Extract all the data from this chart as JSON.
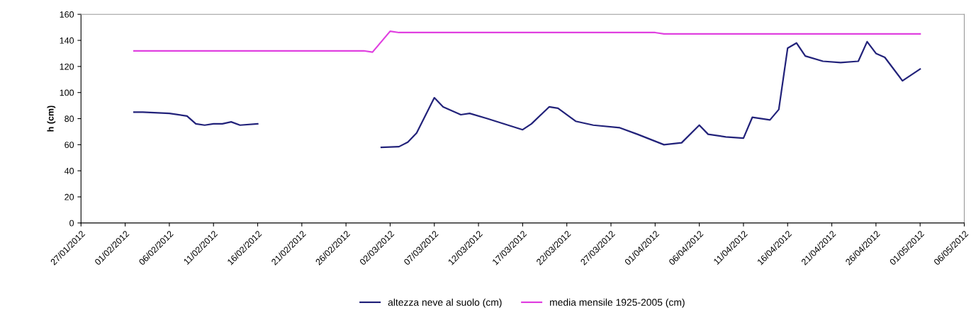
{
  "chart_data": {
    "type": "line",
    "ylabel": "h (cm)",
    "xlim": [
      "2012-01-27",
      "2012-05-06"
    ],
    "xticks": [
      {
        "value": "2012-01-27",
        "label": "27/01/2012"
      },
      {
        "value": "2012-02-01",
        "label": "01/02/2012"
      },
      {
        "value": "2012-02-06",
        "label": "06/02/2012"
      },
      {
        "value": "2012-02-11",
        "label": "11/02/2012"
      },
      {
        "value": "2012-02-16",
        "label": "16/02/2012"
      },
      {
        "value": "2012-02-21",
        "label": "21/02/2012"
      },
      {
        "value": "2012-02-26",
        "label": "26/02/2012"
      },
      {
        "value": "2012-03-02",
        "label": "02/03/2012"
      },
      {
        "value": "2012-03-07",
        "label": "07/03/2012"
      },
      {
        "value": "2012-03-12",
        "label": "12/03/2012"
      },
      {
        "value": "2012-03-17",
        "label": "17/03/2012"
      },
      {
        "value": "2012-03-22",
        "label": "22/03/2012"
      },
      {
        "value": "2012-03-27",
        "label": "27/03/2012"
      },
      {
        "value": "2012-04-01",
        "label": "01/04/2012"
      },
      {
        "value": "2012-04-06",
        "label": "06/04/2012"
      },
      {
        "value": "2012-04-11",
        "label": "11/04/2012"
      },
      {
        "value": "2012-04-16",
        "label": "16/04/2012"
      },
      {
        "value": "2012-04-21",
        "label": "21/04/2012"
      },
      {
        "value": "2012-04-26",
        "label": "26/04/2012"
      },
      {
        "value": "2012-05-01",
        "label": "01/05/2012"
      },
      {
        "value": "2012-05-06",
        "label": "06/05/2012"
      }
    ],
    "ylim": [
      0,
      160
    ],
    "yticks": [
      0,
      20,
      40,
      60,
      80,
      100,
      120,
      140,
      160
    ],
    "grid": false,
    "legend": "bottom",
    "marker": "none",
    "line_style": "solid",
    "series": [
      {
        "name": "altezza neve al suolo (cm)",
        "color": "#22227a",
        "x": [
          "2012-02-02",
          "2012-02-03",
          "2012-02-06",
          "2012-02-08",
          "2012-02-09",
          "2012-02-10",
          "2012-02-11",
          "2012-02-12",
          "2012-02-13",
          "2012-02-14",
          "2012-02-16",
          "2012-02-20",
          "2012-03-01",
          "2012-03-03",
          "2012-03-04",
          "2012-03-05",
          "2012-03-07",
          "2012-03-08",
          "2012-03-10",
          "2012-03-11",
          "2012-03-13",
          "2012-03-17",
          "2012-03-18",
          "2012-03-20",
          "2012-03-21",
          "2012-03-23",
          "2012-03-25",
          "2012-03-28",
          "2012-03-30",
          "2012-04-02",
          "2012-04-04",
          "2012-04-06",
          "2012-04-07",
          "2012-04-09",
          "2012-04-11",
          "2012-04-12",
          "2012-04-14",
          "2012-04-15",
          "2012-04-16",
          "2012-04-17",
          "2012-04-18",
          "2012-04-20",
          "2012-04-22",
          "2012-04-24",
          "2012-04-25",
          "2012-04-26",
          "2012-04-27",
          "2012-04-29",
          "2012-05-01"
        ],
        "values": [
          85,
          85,
          84,
          82,
          76,
          75,
          76,
          76,
          77.5,
          75,
          76,
          null,
          58,
          58.5,
          62,
          69,
          96,
          89,
          83,
          84,
          80,
          71.5,
          76,
          89,
          88,
          78,
          75,
          73,
          68,
          60,
          61.5,
          75,
          68,
          66,
          65,
          81,
          79,
          87,
          134,
          138,
          128,
          124,
          123,
          124,
          139,
          130,
          127,
          109,
          118
        ]
      },
      {
        "name": "media mensile 1925-2005 (cm)",
        "color": "#e040e0",
        "x": [
          "2012-02-02",
          "2012-02-28",
          "2012-02-29",
          "2012-03-02",
          "2012-03-03",
          "2012-04-01",
          "2012-04-02",
          "2012-05-01"
        ],
        "values": [
          132,
          132,
          131,
          147,
          146,
          146,
          145,
          145
        ]
      }
    ]
  }
}
